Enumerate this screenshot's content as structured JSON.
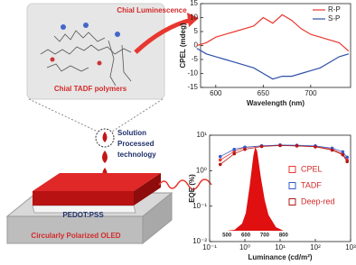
{
  "diagram": {
    "labels": {
      "polymers": "Chial TADF polymers",
      "luminescence": "Chial Luminescence",
      "process": [
        "Solution",
        "Processed",
        "technology"
      ],
      "layer": "PEDOT:PSS",
      "device": "Circularly Polarized OLED"
    }
  },
  "chart_data": [
    {
      "type": "line",
      "x_label": "Wavelength (nm)",
      "y_label": "CPEL (mdeg)",
      "x": [
        580,
        590,
        600,
        610,
        620,
        630,
        640,
        650,
        660,
        670,
        680,
        690,
        700,
        710,
        720,
        730,
        740
      ],
      "series": [
        {
          "name": "R-P",
          "color": "#e8372f",
          "values": [
            0,
            1,
            3,
            4,
            5,
            6,
            7,
            10,
            8,
            11,
            9,
            6,
            4,
            3,
            2,
            1,
            -2
          ]
        },
        {
          "name": "S-P",
          "color": "#2f4fa8",
          "values": [
            -1,
            -3,
            -4,
            -5,
            -6,
            -7,
            -8,
            -10,
            -12,
            -11,
            -11,
            -10,
            -9,
            -8,
            -6,
            -4,
            -3
          ]
        }
      ],
      "xlim": [
        584,
        742
      ],
      "ylim": [
        -15,
        15
      ],
      "xticks": [
        600,
        650,
        700
      ],
      "yticks": [
        -15,
        -10,
        -5,
        0,
        5,
        10,
        15
      ],
      "legend": "upper right"
    },
    {
      "type": "scatter-line",
      "x_label": "Luminance (cd/m²)",
      "y_label": "EQE (%)",
      "xscale": "log",
      "yscale": "log",
      "x": [
        0.2,
        0.5,
        1,
        3,
        10,
        30,
        100,
        300,
        600,
        800
      ],
      "series": [
        {
          "name": "CPEL",
          "color": "#e8372f",
          "values": [
            2,
            3.5,
            4.5,
            5,
            5.2,
            5,
            4.8,
            4,
            3,
            2
          ]
        },
        {
          "name": "TADF",
          "color": "#3a5bc8",
          "values": [
            2.5,
            4,
            4.6,
            5,
            5.3,
            5.2,
            5,
            4.3,
            3.4,
            2.4
          ]
        },
        {
          "name": "Deep-red",
          "color": "#b01818",
          "values": [
            1.5,
            3,
            4,
            4.8,
            5.1,
            5,
            4.7,
            3.8,
            2.8,
            1.8
          ]
        }
      ],
      "xlim": [
        0.1,
        1000
      ],
      "ylim": [
        0.01,
        10
      ],
      "xticks": [
        {
          "value": 0.1,
          "label": "10⁻¹"
        },
        {
          "value": 1,
          "label": "10⁰"
        },
        {
          "value": 10,
          "label": "10¹"
        },
        {
          "value": 100,
          "label": "10²"
        },
        {
          "value": 1000,
          "label": "10³"
        }
      ],
      "yticks": [
        {
          "value": 0.01,
          "label": "10⁻²"
        },
        {
          "value": 0.1,
          "label": "10⁻¹"
        },
        {
          "value": 1,
          "label": "10⁰"
        },
        {
          "value": 10,
          "label": "10¹"
        }
      ],
      "legend": "right"
    },
    {
      "type": "area",
      "color": "#e01010",
      "x": [
        500,
        540,
        580,
        600,
        620,
        640,
        650,
        660,
        680,
        700,
        720,
        760,
        800
      ],
      "values": [
        0,
        0.01,
        0.08,
        0.2,
        0.5,
        0.85,
        0.95,
        0.9,
        0.6,
        0.35,
        0.18,
        0.04,
        0
      ],
      "xlim": [
        480,
        820
      ],
      "ylim": [
        0,
        1
      ],
      "xticks": [
        500,
        600,
        700,
        800
      ]
    }
  ]
}
